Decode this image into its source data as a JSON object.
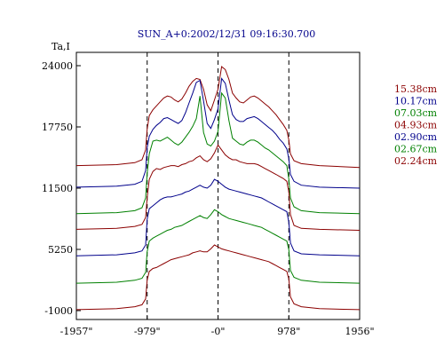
{
  "chart_data": {
    "type": "line",
    "title": "SUN_A+0:2002/12/31 09:16:30.700",
    "ylabel": "Ta,I",
    "xlabel": "",
    "x_range": [
      -1957,
      1956
    ],
    "y_range": [
      -1000,
      24000
    ],
    "x_ticks": [
      {
        "value": -1957,
        "label": "-1957\""
      },
      {
        "value": -979,
        "label": "-979\""
      },
      {
        "value": 0,
        "label": "-0\""
      },
      {
        "value": 978,
        "label": "978\""
      },
      {
        "value": 1956,
        "label": "1956\""
      }
    ],
    "y_ticks": [
      {
        "value": 24000,
        "label": "24000"
      },
      {
        "value": 17750,
        "label": "17750"
      },
      {
        "value": 11500,
        "label": "11500"
      },
      {
        "value": 5250,
        "label": "5250"
      },
      {
        "value": -1000,
        "label": "-1000"
      }
    ],
    "vertical_markers": [
      -979,
      0,
      978
    ],
    "grid": false,
    "legend_position": "right",
    "x": [
      -1957,
      -1400,
      -1150,
      -1050,
      -1000,
      -979,
      -950,
      -900,
      -850,
      -800,
      -750,
      -700,
      -650,
      -600,
      -550,
      -500,
      -450,
      -400,
      -350,
      -300,
      -250,
      -200,
      -150,
      -100,
      -50,
      0,
      50,
      100,
      150,
      200,
      250,
      300,
      350,
      400,
      450,
      500,
      550,
      600,
      650,
      700,
      750,
      800,
      850,
      900,
      950,
      978,
      1000,
      1050,
      1150,
      1400,
      1956
    ],
    "series": [
      {
        "name": "15.38cm",
        "color": "#8b0000",
        "values": [
          13800,
          13900,
          14100,
          14400,
          15400,
          17500,
          18900,
          19500,
          19900,
          20300,
          20700,
          20900,
          20800,
          20500,
          20300,
          20600,
          21200,
          21900,
          22400,
          22700,
          22600,
          21600,
          20000,
          19400,
          20500,
          21600,
          23900,
          23600,
          22600,
          21200,
          20700,
          20300,
          20200,
          20500,
          20800,
          20900,
          20700,
          20400,
          20100,
          19800,
          19400,
          19000,
          18500,
          18000,
          17400,
          16400,
          15000,
          14300,
          14000,
          13800,
          13600
        ]
      },
      {
        "name": "10.17cm",
        "color": "#00008b",
        "values": [
          11600,
          11700,
          11900,
          12200,
          13300,
          15600,
          16800,
          17500,
          17900,
          18200,
          18600,
          18700,
          18500,
          18300,
          18100,
          18400,
          19200,
          20200,
          21200,
          22300,
          22500,
          20400,
          18100,
          17600,
          18500,
          19600,
          22700,
          22200,
          20500,
          19000,
          18500,
          18300,
          18300,
          18600,
          18700,
          18800,
          18600,
          18300,
          18000,
          17700,
          17400,
          17000,
          16500,
          16100,
          15500,
          14500,
          12900,
          12200,
          11800,
          11600,
          11500
        ]
      },
      {
        "name": "07.03cm",
        "color": "#008000",
        "values": [
          8900,
          9000,
          9200,
          9500,
          10500,
          13000,
          15000,
          16300,
          16400,
          16300,
          16500,
          16700,
          16400,
          16100,
          15900,
          16200,
          16700,
          17200,
          17800,
          18600,
          20900,
          17200,
          16000,
          15800,
          16300,
          17300,
          21200,
          20700,
          18400,
          16600,
          16300,
          16000,
          15900,
          16200,
          16400,
          16400,
          16200,
          15900,
          15600,
          15400,
          15100,
          14800,
          14500,
          14200,
          13800,
          12400,
          10500,
          9600,
          9200,
          9000,
          8900
        ]
      },
      {
        "name": "04.93cm",
        "color": "#8b0000",
        "values": [
          7300,
          7400,
          7600,
          7800,
          8500,
          10500,
          12400,
          13200,
          13500,
          13400,
          13600,
          13700,
          13800,
          13800,
          13700,
          13900,
          14000,
          14200,
          14300,
          14600,
          14800,
          14400,
          14200,
          14500,
          15100,
          15900,
          15400,
          14900,
          14600,
          14400,
          14400,
          14200,
          14100,
          14000,
          14000,
          14000,
          13900,
          13700,
          13500,
          13300,
          13100,
          12900,
          12700,
          12500,
          12200,
          11100,
          8800,
          7700,
          7400,
          7300,
          7200
        ]
      },
      {
        "name": "02.90cm",
        "color": "#00008b",
        "values": [
          4600,
          4700,
          4900,
          5100,
          5700,
          8300,
          9400,
          9700,
          10000,
          10300,
          10500,
          10600,
          10600,
          10700,
          10800,
          10900,
          11100,
          11200,
          11400,
          11600,
          11800,
          11600,
          11500,
          11800,
          12400,
          12200,
          11900,
          11600,
          11400,
          11300,
          11200,
          11100,
          11000,
          10900,
          10800,
          10700,
          10600,
          10500,
          10300,
          10100,
          9900,
          9700,
          9500,
          9300,
          9100,
          8000,
          5900,
          5100,
          4800,
          4700,
          4600
        ]
      },
      {
        "name": "02.67cm",
        "color": "#008000",
        "values": [
          1800,
          1900,
          2100,
          2300,
          2900,
          5000,
          6100,
          6400,
          6600,
          6800,
          7000,
          7200,
          7300,
          7500,
          7600,
          7700,
          7900,
          8100,
          8300,
          8500,
          8700,
          8500,
          8400,
          8800,
          9300,
          9100,
          8800,
          8600,
          8400,
          8300,
          8200,
          8100,
          8000,
          7900,
          7800,
          7700,
          7600,
          7500,
          7300,
          7100,
          6900,
          6700,
          6500,
          6300,
          6100,
          5200,
          3100,
          2400,
          2100,
          1900,
          1800
        ]
      },
      {
        "name": "02.24cm",
        "color": "#8b0000",
        "values": [
          -900,
          -800,
          -600,
          -400,
          200,
          2100,
          3000,
          3300,
          3400,
          3600,
          3800,
          4000,
          4200,
          4300,
          4400,
          4500,
          4600,
          4700,
          4900,
          5000,
          5100,
          5000,
          5000,
          5300,
          5700,
          5500,
          5300,
          5200,
          5100,
          5000,
          4900,
          4800,
          4700,
          4600,
          4500,
          4400,
          4300,
          4200,
          4100,
          4000,
          3800,
          3600,
          3400,
          3200,
          3000,
          2200,
          400,
          -300,
          -600,
          -800,
          -900
        ]
      }
    ]
  }
}
